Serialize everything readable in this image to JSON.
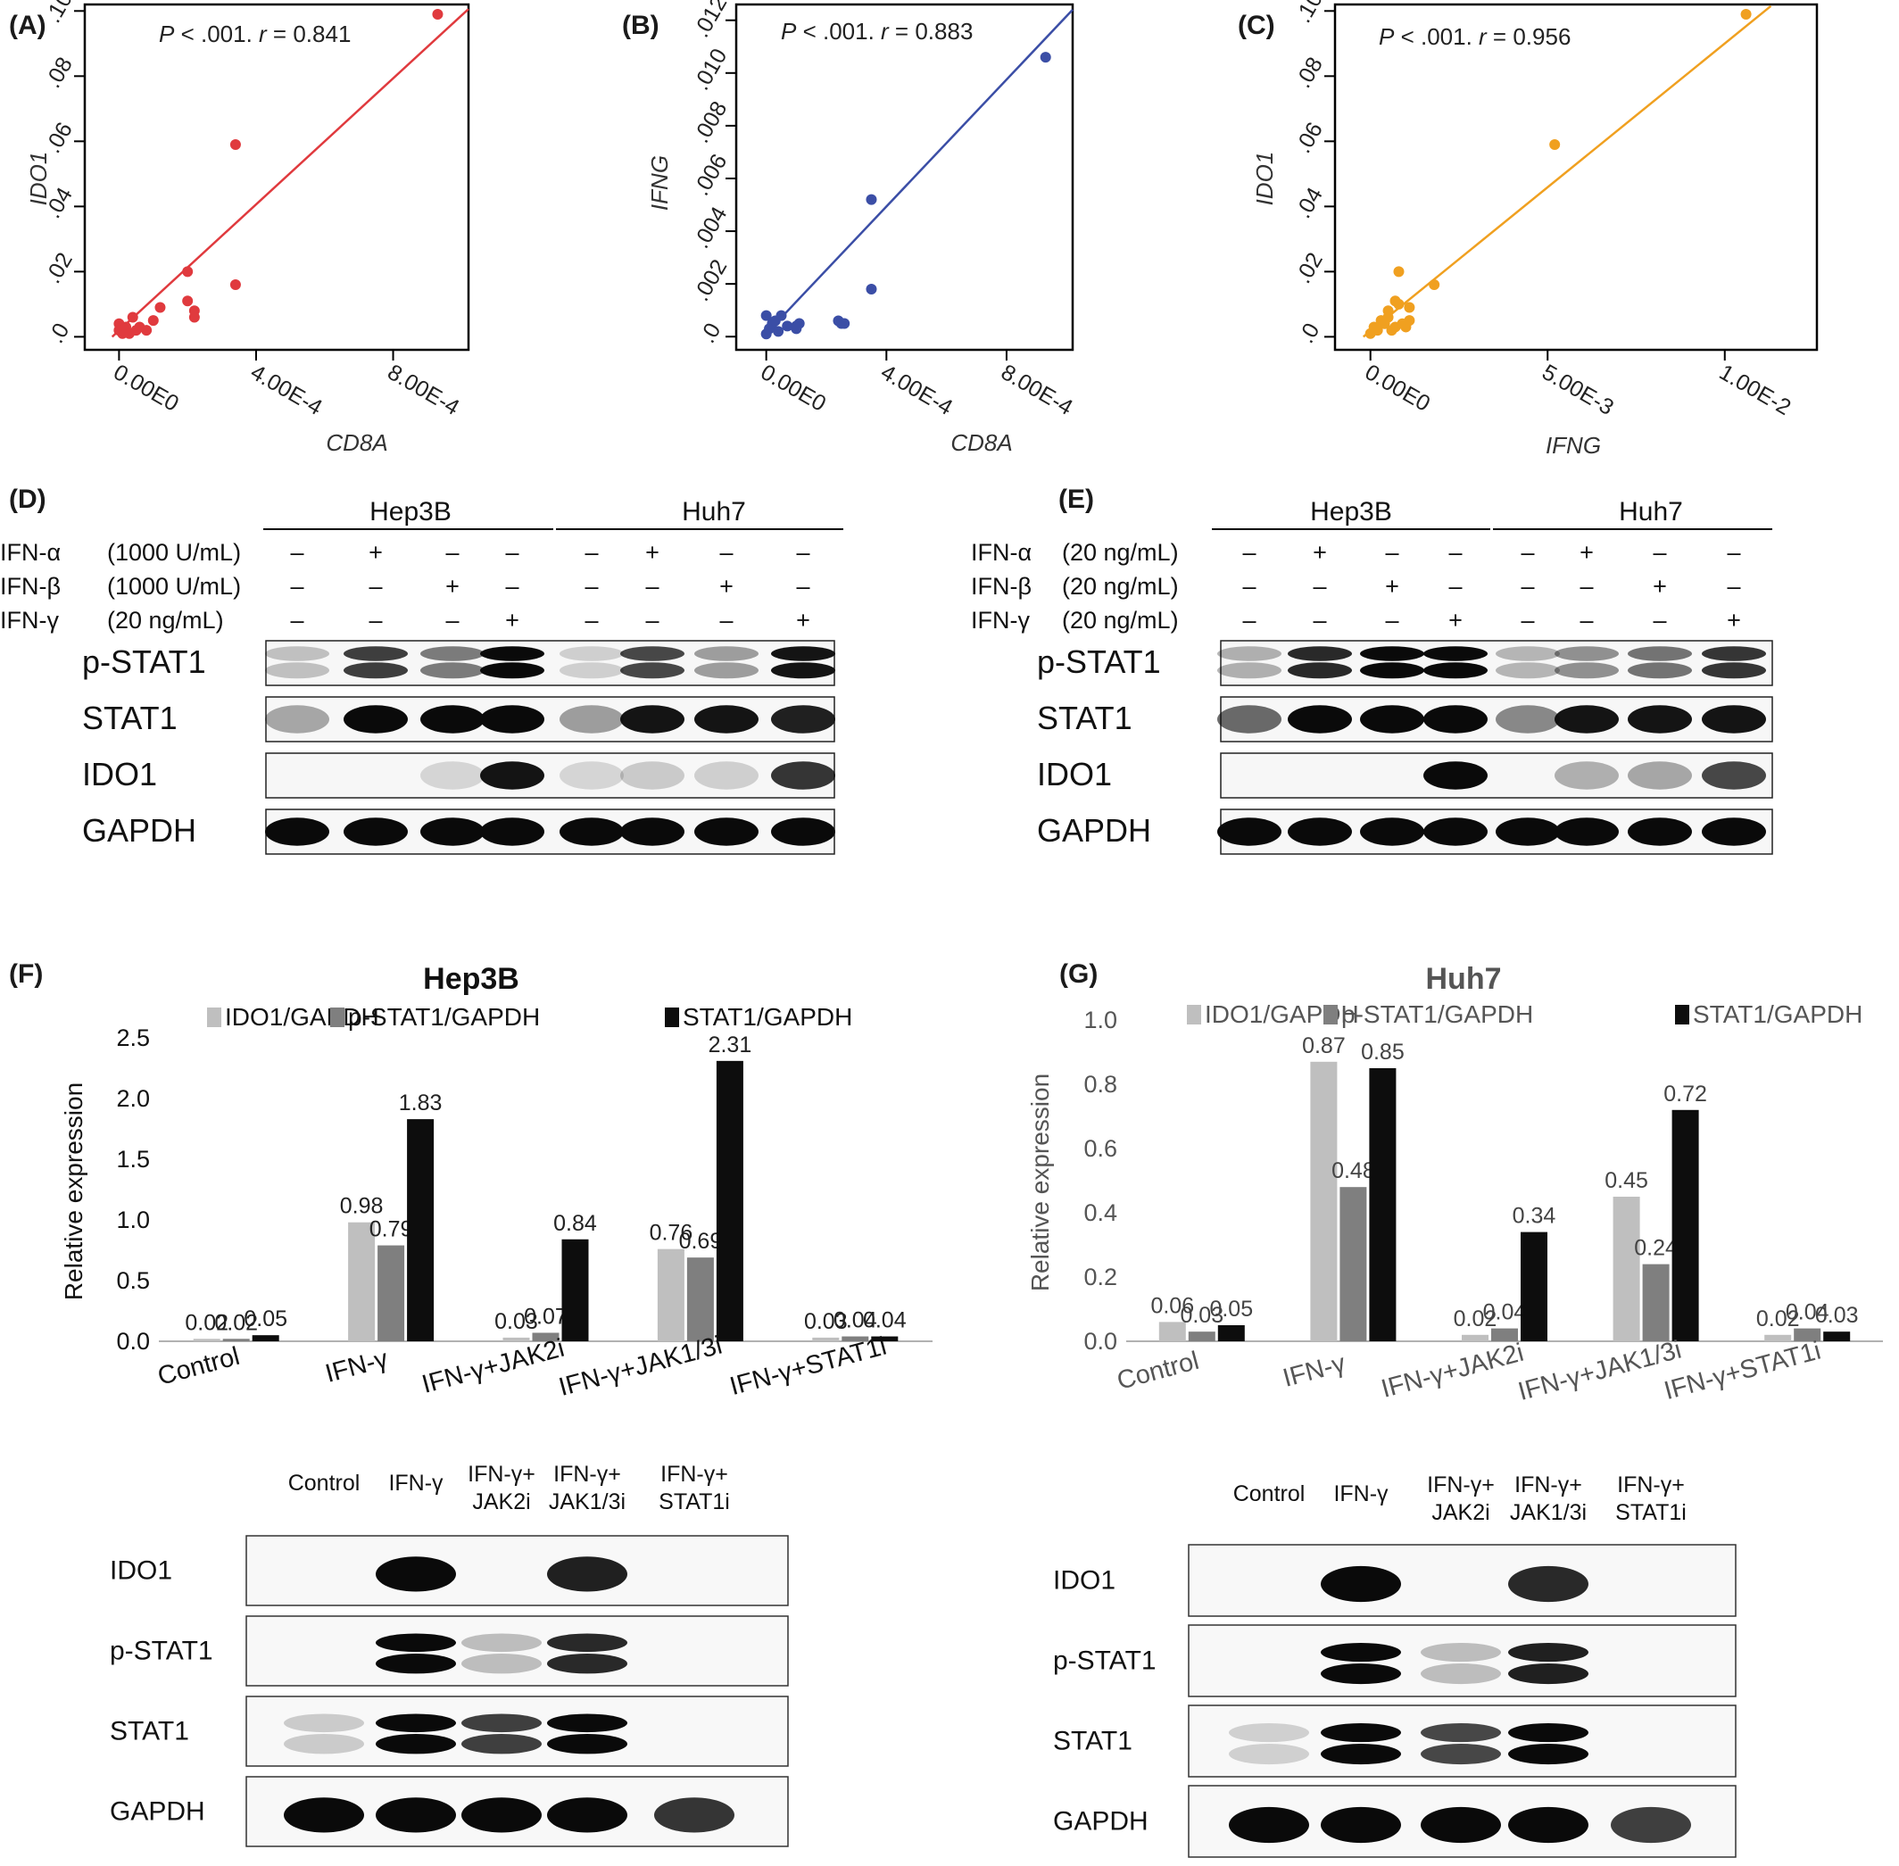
{
  "panel_labels": {
    "a": "(A)",
    "b": "(B)",
    "c": "(C)",
    "d": "(D)",
    "e": "(E)",
    "f": "(F)",
    "g": "(G)"
  },
  "symbols": {
    "plus": "+",
    "minus": "–"
  },
  "chart_data": [
    {
      "id": "A",
      "type": "scatter",
      "stat_p": "P",
      "stat_mid": " < .001. ",
      "stat_r": "r",
      "stat_tail": " = 0.841",
      "xlabel": "CD8A",
      "ylabel": "IDO1",
      "xlim": [
        -0.0001,
        0.00102
      ],
      "ylim": [
        -0.004,
        0.102
      ],
      "xticks": [
        0,
        0.0004,
        0.0008
      ],
      "xtick_labels": [
        "0.00E0",
        "4.00E-4",
        "8.00E-4"
      ],
      "yticks": [
        0,
        0.02,
        0.04,
        0.06,
        0.08,
        0.1
      ],
      "ytick_labels": [
        ".0",
        ".02",
        ".04",
        ".06",
        ".08",
        ".10"
      ],
      "color": "#e03a3e",
      "fit": [
        [
          -2e-05,
          0.0
        ],
        [
          0.00102,
          0.1006
        ]
      ],
      "points": [
        [
          0.0,
          0.004
        ],
        [
          0.0,
          0.002
        ],
        [
          1e-05,
          0.001
        ],
        [
          2e-05,
          0.003
        ],
        [
          3e-05,
          0.001
        ],
        [
          4e-05,
          0.006
        ],
        [
          5e-05,
          0.002
        ],
        [
          6e-05,
          0.003
        ],
        [
          8e-05,
          0.002
        ],
        [
          0.0001,
          0.005
        ],
        [
          0.00012,
          0.009
        ],
        [
          0.0002,
          0.011
        ],
        [
          0.0002,
          0.02
        ],
        [
          0.00022,
          0.008
        ],
        [
          0.00022,
          0.006
        ],
        [
          0.00034,
          0.059
        ],
        [
          0.00034,
          0.016
        ],
        [
          0.00093,
          0.099
        ]
      ]
    },
    {
      "id": "B",
      "type": "scatter",
      "stat_p": "P",
      "stat_mid": " < .001. ",
      "stat_r": "r",
      "stat_tail": " = 0.883",
      "xlabel": "CD8A",
      "ylabel": "IFNG",
      "xlim": [
        -0.0001,
        0.00102
      ],
      "ylim": [
        -0.0005,
        0.0126
      ],
      "xticks": [
        0,
        0.0004,
        0.0008
      ],
      "xtick_labels": [
        "0.00E0",
        "4.00E-4",
        "8.00E-4"
      ],
      "yticks": [
        0,
        0.002,
        0.004,
        0.006,
        0.008,
        0.01,
        0.012
      ],
      "ytick_labels": [
        ".0",
        ".002",
        ".004",
        ".006",
        ".008",
        ".010",
        ".012"
      ],
      "color": "#3b4ea6",
      "fit": [
        [
          -1e-05,
          0.0
        ],
        [
          0.00102,
          0.0124
        ]
      ],
      "points": [
        [
          0.0,
          0.0001
        ],
        [
          0.0,
          0.0008
        ],
        [
          1e-05,
          0.0003
        ],
        [
          2e-05,
          0.0005
        ],
        [
          3e-05,
          0.0006
        ],
        [
          4e-05,
          0.0002
        ],
        [
          5e-05,
          0.0008
        ],
        [
          7e-05,
          0.0004
        ],
        [
          0.0001,
          0.0004
        ],
        [
          0.00011,
          0.0005
        ],
        [
          0.0001,
          0.0003
        ],
        [
          0.00024,
          0.0006
        ],
        [
          0.00025,
          0.0005
        ],
        [
          0.00026,
          0.0005
        ],
        [
          0.00035,
          0.0018
        ],
        [
          0.00035,
          0.0052
        ],
        [
          0.00093,
          0.0106
        ]
      ]
    },
    {
      "id": "C",
      "type": "scatter",
      "stat_p": "P",
      "stat_mid": " < .001. ",
      "stat_r": "r",
      "stat_tail": " = 0.956",
      "xlabel": "IFNG",
      "ylabel": "IDO1",
      "xlim": [
        -0.001,
        0.0126
      ],
      "ylim": [
        -0.004,
        0.102
      ],
      "xticks": [
        0,
        0.005,
        0.01
      ],
      "xtick_labels": [
        "0.00E0",
        "5.00E-3",
        "1.00E-2"
      ],
      "yticks": [
        0,
        0.02,
        0.04,
        0.06,
        0.08,
        0.1
      ],
      "ytick_labels": [
        ".0",
        ".02",
        ".04",
        ".06",
        ".08",
        ".10"
      ],
      "color": "#f0a020",
      "fit": [
        [
          -0.0002,
          0.0
        ],
        [
          0.0113,
          0.1015
        ]
      ],
      "points": [
        [
          0.0,
          0.001
        ],
        [
          0.0001,
          0.003
        ],
        [
          0.0002,
          0.002
        ],
        [
          0.0003,
          0.005
        ],
        [
          0.0004,
          0.004
        ],
        [
          0.0005,
          0.008
        ],
        [
          0.0005,
          0.006
        ],
        [
          0.0006,
          0.002
        ],
        [
          0.0007,
          0.003
        ],
        [
          0.0007,
          0.011
        ],
        [
          0.0008,
          0.01
        ],
        [
          0.0008,
          0.02
        ],
        [
          0.0009,
          0.004
        ],
        [
          0.001,
          0.003
        ],
        [
          0.0011,
          0.005
        ],
        [
          0.0011,
          0.009
        ],
        [
          0.0018,
          0.016
        ],
        [
          0.0052,
          0.059
        ],
        [
          0.0106,
          0.099
        ]
      ]
    },
    {
      "id": "F",
      "type": "bar",
      "title": "Hep3B",
      "ylabel": "Relative expression",
      "categories": [
        "Control",
        "IFN-γ",
        "IFN-γ+JAK2i",
        "IFN-γ+JAK1/3i",
        "IFN-γ+STAT1i"
      ],
      "ylim": [
        0,
        2.5
      ],
      "yticks": [
        0,
        0.5,
        1,
        1.5,
        2,
        2.5
      ],
      "ytick_labels": [
        "0.0",
        "0.5",
        "1.0",
        "1.5",
        "2.0",
        "2.5"
      ],
      "legend_position": "top",
      "series": [
        {
          "name": "IDO1/GAPDH",
          "color": "#bfbfbf",
          "values": [
            0.02,
            0.98,
            0.03,
            0.76,
            0.03
          ],
          "labels": [
            "0.02",
            "0.98",
            "0.03",
            "0.76",
            "0.03"
          ]
        },
        {
          "name": "p-STAT1/GAPDH",
          "color": "#7f7f7f",
          "values": [
            0.02,
            0.79,
            0.07,
            0.69,
            0.04
          ],
          "labels": [
            "0.02",
            "0.79",
            "0.07",
            "0.69",
            "0.04"
          ]
        },
        {
          "name": "STAT1/GAPDH",
          "color": "#0d0d0d",
          "values": [
            0.05,
            1.83,
            0.84,
            2.31,
            0.04
          ],
          "labels": [
            "0.05",
            "1.83",
            "0.84",
            "2.31",
            "0.04"
          ]
        }
      ]
    },
    {
      "id": "G",
      "type": "bar",
      "title": "Huh7",
      "ylabel": "Relative expression",
      "categories": [
        "Control",
        "IFN-γ",
        "IFN-γ+JAK2i",
        "IFN-γ+JAK1/3i",
        "IFN-γ+STAT1i"
      ],
      "ylim": [
        0,
        1.0
      ],
      "yticks": [
        0,
        0.2,
        0.4,
        0.6,
        0.8,
        1.0
      ],
      "ytick_labels": [
        "0.0",
        "0.2",
        "0.4",
        "0.6",
        "0.8",
        "1.0"
      ],
      "legend_position": "top",
      "series": [
        {
          "name": "IDO1/GAPDH",
          "color": "#bfbfbf",
          "values": [
            0.06,
            0.87,
            0.02,
            0.45,
            0.02
          ],
          "labels": [
            "0.06",
            "0.87",
            "0.02",
            "0.45",
            "0.02"
          ]
        },
        {
          "name": "p-STAT1/GAPDH",
          "color": "#7f7f7f",
          "values": [
            0.03,
            0.48,
            0.04,
            0.24,
            0.04
          ],
          "labels": [
            "0.03",
            "0.48",
            "0.04",
            "0.24",
            "0.04"
          ]
        },
        {
          "name": "STAT1/GAPDH",
          "color": "#0d0d0d",
          "values": [
            0.05,
            0.85,
            0.34,
            0.72,
            0.03
          ],
          "labels": [
            "0.05",
            "0.85",
            "0.34",
            "0.72",
            "0.03"
          ]
        }
      ]
    }
  ],
  "blot_D": {
    "groups": [
      "Hep3B",
      "Huh7"
    ],
    "conditions": [
      {
        "name": "IFN-α",
        "dose": "(1000 U/mL)",
        "marks": [
          0,
          1,
          0,
          0,
          0,
          1,
          0,
          0
        ]
      },
      {
        "name": "IFN-β",
        "dose": "(1000 U/mL)",
        "marks": [
          0,
          0,
          1,
          0,
          0,
          0,
          1,
          0
        ]
      },
      {
        "name": "IFN-γ",
        "dose": "(20 ng/mL)",
        "marks": [
          0,
          0,
          0,
          1,
          0,
          0,
          0,
          1
        ]
      }
    ],
    "rows": [
      {
        "name": "p-STAT1",
        "intensity": [
          0.12,
          0.75,
          0.45,
          1.0,
          0.06,
          0.7,
          0.3,
          0.95
        ],
        "double": true
      },
      {
        "name": "STAT1",
        "intensity": [
          0.25,
          1.0,
          1.0,
          1.0,
          0.3,
          0.95,
          0.95,
          0.9
        ],
        "double": false
      },
      {
        "name": "IDO1",
        "intensity": [
          0,
          0,
          0.02,
          0.95,
          0.02,
          0.08,
          0.06,
          0.8
        ],
        "double": false
      },
      {
        "name": "GAPDH",
        "intensity": [
          1,
          1,
          1,
          1,
          1,
          1,
          1,
          1
        ],
        "double": false
      }
    ]
  },
  "blot_E": {
    "groups": [
      "Hep3B",
      "Huh7"
    ],
    "conditions": [
      {
        "name": "IFN-α",
        "dose": "(20 ng/mL)",
        "marks": [
          0,
          1,
          0,
          0,
          0,
          1,
          0,
          0
        ]
      },
      {
        "name": "IFN-β",
        "dose": "(20 ng/mL)",
        "marks": [
          0,
          0,
          1,
          0,
          0,
          0,
          1,
          0
        ]
      },
      {
        "name": "IFN-γ",
        "dose": "(20 ng/mL)",
        "marks": [
          0,
          0,
          0,
          1,
          0,
          0,
          0,
          1
        ]
      }
    ],
    "rows": [
      {
        "name": "p-STAT1",
        "intensity": [
          0.2,
          0.85,
          1.0,
          1.0,
          0.18,
          0.35,
          0.5,
          0.8
        ],
        "double": true
      },
      {
        "name": "STAT1",
        "intensity": [
          0.55,
          1.0,
          1.0,
          1.0,
          0.4,
          0.95,
          0.95,
          0.95
        ],
        "double": false
      },
      {
        "name": "IDO1",
        "intensity": [
          0,
          0,
          0,
          1.0,
          0.0,
          0.2,
          0.25,
          0.7
        ],
        "double": false
      },
      {
        "name": "GAPDH",
        "intensity": [
          1,
          1,
          1,
          1,
          1,
          1,
          1,
          1
        ],
        "double": false
      }
    ]
  },
  "blot_F": {
    "lanes": [
      [
        "Control"
      ],
      [
        "IFN-γ"
      ],
      [
        "IFN-γ+",
        "JAK2i"
      ],
      [
        "IFN-γ+",
        "JAK1/3i"
      ],
      [
        "IFN-γ+",
        "STAT1i"
      ]
    ],
    "rows": [
      {
        "name": "IDO1",
        "intensity": [
          0,
          1,
          0,
          0.9,
          0
        ],
        "double": false
      },
      {
        "name": "p-STAT1",
        "intensity": [
          0,
          1,
          0.15,
          0.85,
          0
        ],
        "double": true
      },
      {
        "name": "STAT1",
        "intensity": [
          0.08,
          1,
          0.75,
          1,
          0
        ],
        "double": true
      },
      {
        "name": "GAPDH",
        "intensity": [
          1,
          1,
          1,
          1,
          0.8
        ],
        "double": false
      }
    ]
  },
  "blot_G": {
    "lanes": [
      [
        "Control"
      ],
      [
        "IFN-γ"
      ],
      [
        "IFN-γ+",
        "JAK2i"
      ],
      [
        "IFN-γ+",
        "JAK1/3i"
      ],
      [
        "IFN-γ+",
        "STAT1i"
      ]
    ],
    "rows": [
      {
        "name": "IDO1",
        "intensity": [
          0,
          1,
          0,
          0.85,
          0
        ],
        "double": false
      },
      {
        "name": "p-STAT1",
        "intensity": [
          0,
          1,
          0.15,
          0.9,
          0
        ],
        "double": true
      },
      {
        "name": "STAT1",
        "intensity": [
          0.06,
          1,
          0.7,
          1,
          0
        ],
        "double": true
      },
      {
        "name": "GAPDH",
        "intensity": [
          1,
          1,
          1,
          1,
          0.75
        ],
        "double": false
      }
    ]
  }
}
